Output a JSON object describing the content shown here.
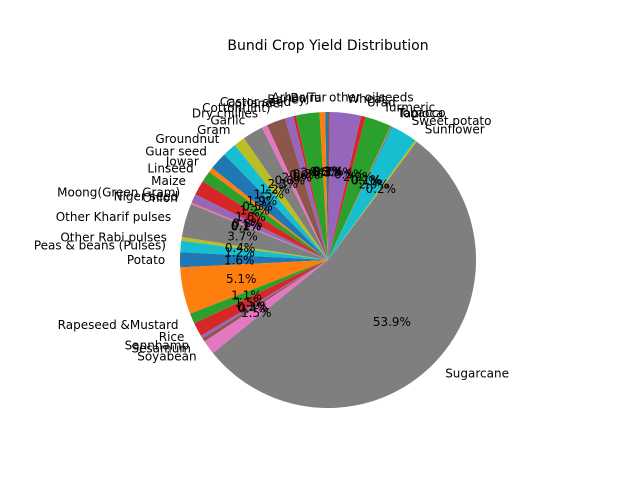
{
  "chart_data": {
    "type": "pie",
    "title": "Bundi Crop Yield Distribution",
    "start_angle_deg": 90,
    "direction": "counterclockwise",
    "label_format": "one decimal percent",
    "slices": [
      {
        "label": "Arhar/Tur",
        "value": 0.3,
        "color": "#1f77b4"
      },
      {
        "label": "Bajra",
        "value": 0.6,
        "color": "#ff7f0e"
      },
      {
        "label": "Barley",
        "value": 2.5,
        "color": "#2ca02c"
      },
      {
        "label": "Castor seed",
        "value": 0.3,
        "color": "#d62728"
      },
      {
        "label": "Coriander",
        "value": 0.9,
        "color": "#9467bd"
      },
      {
        "label": "Cotton(lint)",
        "value": 2.0,
        "color": "#8c564b"
      },
      {
        "label": "Dry chillies",
        "value": 0.6,
        "color": "#e377c2"
      },
      {
        "label": "Garlic",
        "value": 2.2,
        "color": "#7f7f7f"
      },
      {
        "label": "Gram",
        "value": 1.2,
        "color": "#bcbd22"
      },
      {
        "label": "Groundnut",
        "value": 1.5,
        "color": "#17becf"
      },
      {
        "label": "Guar seed",
        "value": 1.9,
        "color": "#1f77b4"
      },
      {
        "label": "Jowar",
        "value": 0.5,
        "color": "#ff7f0e"
      },
      {
        "label": "Linseed",
        "value": 1.2,
        "color": "#2ca02c"
      },
      {
        "label": "Maize",
        "value": 1.6,
        "color": "#d62728"
      },
      {
        "label": "Moong(Green Gram)",
        "value": 0.8,
        "color": "#9467bd"
      },
      {
        "label": "Niger seed",
        "value": 0.1,
        "color": "#8c564b"
      },
      {
        "label": "Onion",
        "value": 0.2,
        "color": "#e377c2"
      },
      {
        "label": "Other Kharif pulses",
        "value": 3.6,
        "color": "#7f7f7f"
      },
      {
        "label": "Other Rabi pulses",
        "value": 0.4,
        "color": "#bcbd22"
      },
      {
        "label": "Peas & beans (Pulses)",
        "value": 1.2,
        "color": "#17becf"
      },
      {
        "label": "Potato",
        "value": 1.6,
        "color": "#1f77b4"
      },
      {
        "label": "",
        "value": 5.0,
        "color": "#ff7f0e"
      },
      {
        "label": "Rapeseed &Mustard",
        "value": 1.1,
        "color": "#2ca02c"
      },
      {
        "label": "Rice",
        "value": 1.5,
        "color": "#d62728"
      },
      {
        "label": "Sannhamp",
        "value": 0.3,
        "color": "#9467bd"
      },
      {
        "label": "Sesamum",
        "value": 0.4,
        "color": "#8c564b"
      },
      {
        "label": "Soyabean",
        "value": 1.5,
        "color": "#e377c2"
      },
      {
        "label": "Sugarcane",
        "value": 52.7,
        "color": "#7f7f7f"
      },
      {
        "label": "Sunflower",
        "value": 0.2,
        "color": "#bcbd22"
      },
      {
        "label": "Sweet potato",
        "value": 2.8,
        "color": "#17becf"
      },
      {
        "label": "Tapioca",
        "value": 0.1,
        "color": "#1f77b4"
      },
      {
        "label": "Tobacco",
        "value": 0.1,
        "color": "#ff7f0e"
      },
      {
        "label": "Turmeric",
        "value": 2.8,
        "color": "#2ca02c"
      },
      {
        "label": "Urad",
        "value": 0.5,
        "color": "#d62728"
      },
      {
        "label": "Wheat",
        "value": 3.3,
        "color": "#9467bd"
      },
      {
        "label": "other oilseeds",
        "value": 0.2,
        "color": "#8c564b"
      }
    ]
  }
}
